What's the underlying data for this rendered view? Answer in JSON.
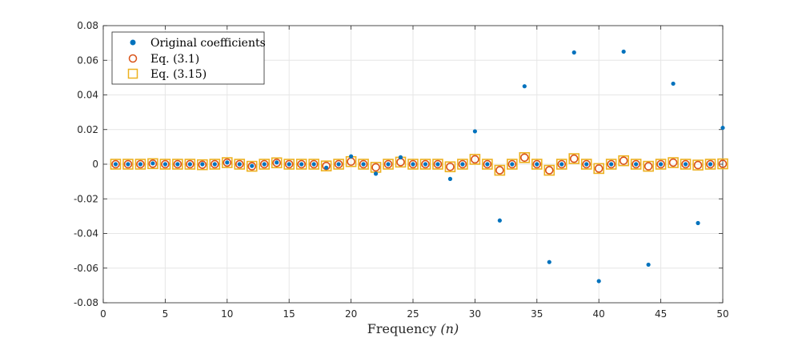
{
  "chart_data": {
    "type": "scatter",
    "title": "",
    "xlabel": "Frequency (n)",
    "ylabel": "",
    "xlim": [
      0,
      50
    ],
    "ylim": [
      -0.08,
      0.08
    ],
    "grid": true,
    "legend_position": "top-left",
    "x_ticks": [
      "0",
      "5",
      "10",
      "15",
      "20",
      "25",
      "30",
      "35",
      "40",
      "45",
      "50"
    ],
    "y_ticks": [
      "0.08",
      "0.06",
      "0.04",
      "0.02",
      "0",
      "-0.02",
      "-0.04",
      "-0.06",
      "-0.08"
    ],
    "x": [
      1,
      2,
      3,
      4,
      5,
      6,
      7,
      8,
      9,
      10,
      11,
      12,
      13,
      14,
      15,
      16,
      17,
      18,
      19,
      20,
      21,
      22,
      23,
      24,
      25,
      26,
      27,
      28,
      29,
      30,
      31,
      32,
      33,
      34,
      35,
      36,
      37,
      38,
      39,
      40,
      41,
      42,
      43,
      44,
      45,
      46,
      47,
      48,
      49,
      50
    ],
    "series": [
      {
        "name": "Original coefficients",
        "marker": "filled-dot",
        "color": "#0072BD",
        "values": [
          0,
          0,
          0,
          0.0005,
          0,
          0,
          0,
          0,
          0,
          0.001,
          0,
          -0.001,
          0,
          0.001,
          0,
          0,
          0,
          -0.002,
          0,
          0.0045,
          0,
          -0.0055,
          0,
          0.004,
          0,
          0,
          0,
          -0.0085,
          0,
          0.019,
          0,
          -0.0325,
          0,
          0.045,
          0,
          -0.0565,
          0,
          0.0645,
          0,
          -0.0675,
          0,
          0.065,
          0,
          -0.058,
          0,
          0.0465,
          0,
          -0.034,
          0,
          0.021
        ]
      },
      {
        "name": "Eq. (3.1)",
        "marker": "circle",
        "color": "#D95319",
        "values": [
          0,
          0,
          0,
          0.0003,
          0,
          0,
          0,
          -0.0003,
          0,
          0.0009,
          0,
          -0.0012,
          0,
          0.0008,
          0,
          0,
          0,
          -0.001,
          0,
          0.0015,
          0,
          -0.0018,
          0,
          0.0012,
          0,
          0,
          0,
          -0.0015,
          0,
          0.0028,
          0,
          -0.0035,
          0,
          0.0038,
          0,
          -0.0035,
          0,
          0.0032,
          0,
          -0.0025,
          0,
          0.002,
          0,
          -0.0012,
          0,
          0.0009,
          0,
          -0.0005,
          0,
          0.0002
        ]
      },
      {
        "name": "Eq. (3.15)",
        "marker": "square",
        "color": "#EDB120",
        "values": [
          0,
          0,
          0,
          0.0003,
          0,
          0,
          0,
          -0.0003,
          0,
          0.0009,
          0,
          -0.0012,
          0,
          0.0008,
          0,
          0,
          0,
          -0.001,
          0,
          0.0015,
          0,
          -0.0018,
          0,
          0.0012,
          0,
          0,
          0,
          -0.0015,
          0,
          0.0028,
          0,
          -0.0035,
          0,
          0.0038,
          0,
          -0.0035,
          0,
          0.0032,
          0,
          -0.0025,
          0,
          0.002,
          0,
          -0.0012,
          0,
          0.0009,
          0,
          -0.0005,
          0,
          0.0002
        ]
      }
    ]
  }
}
